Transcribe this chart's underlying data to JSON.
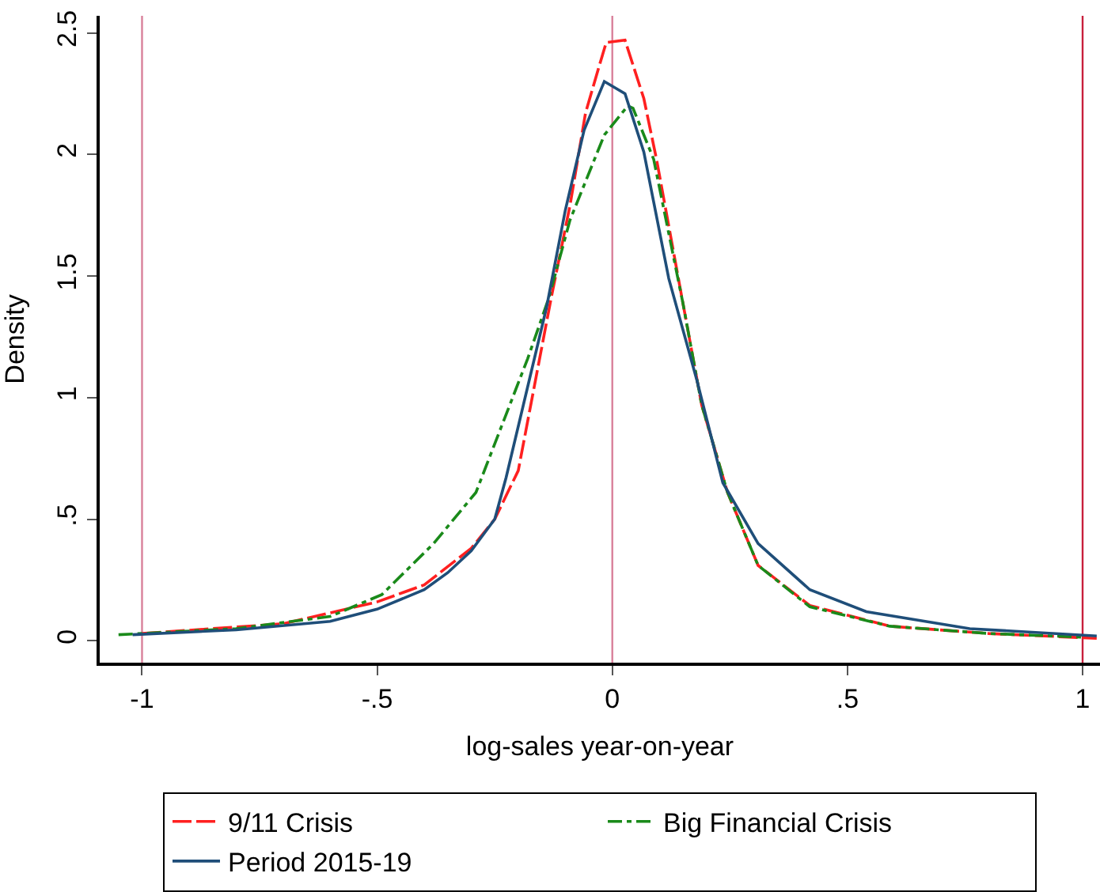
{
  "chart_data": {
    "type": "line",
    "xlabel": "log-sales year-on-year",
    "ylabel": "Density",
    "xlim": [
      -1.09,
      1.037
    ],
    "ylim": [
      -0.09,
      2.57
    ],
    "xticks": [
      {
        "value": -1,
        "label": "-1"
      },
      {
        "value": -0.5,
        "label": "-.5"
      },
      0,
      {
        "value": 0.5,
        "label": ".5"
      },
      1
    ],
    "yticks": [
      0,
      {
        "value": 0.5,
        "label": ".5"
      },
      1,
      1.5,
      2,
      2.5
    ],
    "grid": false,
    "legend": "bottom",
    "marker": "none",
    "ref_lines": [
      {
        "axis": "x",
        "value": -1,
        "color": "#d9809a"
      },
      {
        "axis": "x",
        "value": 0,
        "color": "#d9809a"
      },
      {
        "axis": "x",
        "value": 1,
        "color": "#c8203c"
      }
    ],
    "series": [
      {
        "name": "9/11 Crisis",
        "color": "#ff2020",
        "line_style": "dashed",
        "x": [
          -1.0,
          -0.7,
          -0.5,
          -0.4,
          -0.3,
          -0.25,
          -0.2,
          -0.13,
          -0.09,
          -0.057,
          -0.03,
          -0.013,
          0.027,
          0.067,
          0.094,
          0.15,
          0.19,
          0.245,
          0.31,
          0.42,
          0.59,
          0.8,
          1.03
        ],
        "values": [
          0.03,
          0.07,
          0.16,
          0.23,
          0.38,
          0.5,
          0.7,
          1.41,
          1.79,
          2.17,
          2.35,
          2.46,
          2.47,
          2.23,
          1.98,
          1.39,
          0.97,
          0.61,
          0.31,
          0.145,
          0.06,
          0.03,
          0.01
        ]
      },
      {
        "name": "Big Financial Crisis",
        "color": "#1a8a1a",
        "line_style": "dashdot",
        "x": [
          -1.05,
          -0.8,
          -0.6,
          -0.49,
          -0.38,
          -0.29,
          -0.18,
          -0.135,
          -0.09,
          -0.017,
          0.033,
          0.044,
          0.088,
          0.15,
          0.19,
          0.245,
          0.31,
          0.42,
          0.59,
          0.8,
          1.0
        ],
        "values": [
          0.025,
          0.05,
          0.1,
          0.19,
          0.4,
          0.61,
          1.16,
          1.41,
          1.73,
          2.08,
          2.2,
          2.19,
          1.98,
          1.39,
          0.97,
          0.61,
          0.31,
          0.14,
          0.06,
          0.03,
          0.015
        ]
      },
      {
        "name": "Period 2015-19",
        "color": "#1f4e79",
        "line_style": "solid",
        "x": [
          -1.02,
          -0.8,
          -0.6,
          -0.5,
          -0.4,
          -0.35,
          -0.3,
          -0.25,
          -0.226,
          -0.14,
          -0.1,
          -0.06,
          -0.017,
          0.027,
          0.067,
          0.12,
          0.18,
          0.235,
          0.31,
          0.42,
          0.54,
          0.76,
          1.03
        ],
        "values": [
          0.025,
          0.045,
          0.08,
          0.13,
          0.21,
          0.28,
          0.37,
          0.5,
          0.67,
          1.37,
          1.77,
          2.1,
          2.3,
          2.25,
          2.01,
          1.49,
          1.07,
          0.65,
          0.4,
          0.21,
          0.12,
          0.05,
          0.02
        ]
      }
    ]
  }
}
